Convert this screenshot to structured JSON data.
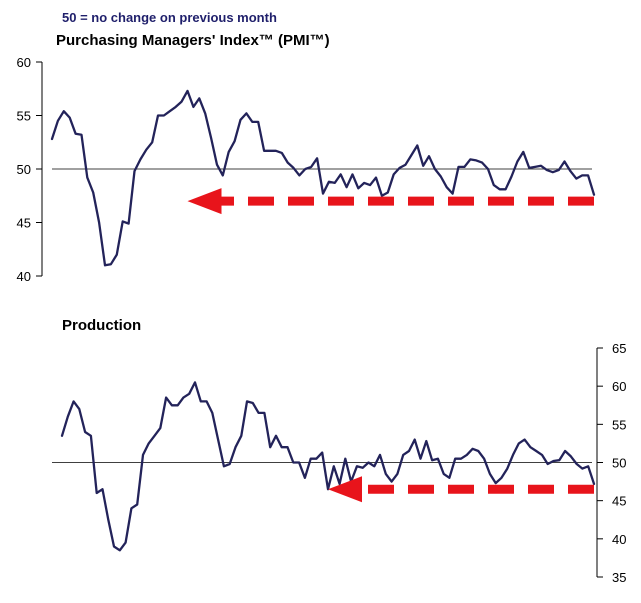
{
  "header": {
    "note": "50 =  no change on previous month"
  },
  "colors": {
    "line": "#23235a",
    "arrow": "#e8141b",
    "axis": "#000000"
  },
  "chart_data": [
    {
      "type": "line",
      "title": "Purchasing Managers' Index™ (PMI™)",
      "xlabel": "",
      "ylabel": "",
      "ylim": [
        40,
        60
      ],
      "yticks": [
        40,
        45,
        50,
        55,
        60
      ],
      "axis_side": "left",
      "reference_line": 50,
      "arrow": {
        "direction": "left",
        "style": "dashed",
        "from_index": 120,
        "to_index": 23
      },
      "series": [
        {
          "values": [
            52.8,
            54.5,
            55.4,
            54.8,
            53.3,
            53.2,
            49.2,
            47.8,
            45.0,
            41.0,
            41.1,
            42.0,
            45.1,
            44.9,
            49.8,
            50.9,
            51.8,
            52.5,
            55.0,
            55.0,
            55.4,
            55.8,
            56.3,
            57.3,
            55.8,
            56.6,
            55.2,
            52.9,
            50.4,
            49.4,
            51.6,
            52.6,
            54.6,
            55.2,
            54.4,
            54.4,
            51.7,
            51.7,
            51.7,
            51.5,
            50.6,
            50.1,
            49.4,
            50.0,
            50.2,
            51.0,
            47.7,
            48.8,
            48.7,
            49.5,
            48.3,
            49.5,
            48.2,
            48.7,
            48.5,
            49.2,
            47.5,
            47.8,
            49.5,
            50.1,
            50.4,
            51.3,
            52.2,
            50.3,
            51.2,
            50.0,
            49.3,
            48.3,
            47.7,
            50.2,
            50.2,
            50.9,
            50.8,
            50.6,
            50.0,
            48.5,
            48.1,
            48.1,
            49.3,
            50.7,
            51.6,
            50.1,
            50.2,
            50.3,
            49.9,
            49.7,
            49.9,
            50.7,
            49.8,
            49.1,
            49.4,
            49.4,
            47.6
          ]
        }
      ]
    },
    {
      "type": "line",
      "title": "Production",
      "xlabel": "",
      "ylabel": "",
      "ylim": [
        35,
        65
      ],
      "yticks": [
        35,
        40,
        45,
        50,
        55,
        60,
        65
      ],
      "axis_side": "right",
      "reference_line": 50,
      "arrow": {
        "direction": "left",
        "style": "dashed",
        "from_index": 120,
        "to_index": 46
      },
      "series": [
        {
          "values": [
            53.5,
            56.0,
            58.0,
            57.0,
            54.0,
            53.5,
            46.0,
            46.5,
            42.5,
            39.0,
            38.5,
            39.5,
            44.0,
            44.5,
            51.0,
            52.5,
            53.5,
            54.5,
            58.5,
            57.5,
            57.5,
            58.5,
            59.0,
            60.5,
            58.0,
            58.0,
            56.5,
            53.0,
            49.5,
            49.8,
            52.0,
            53.5,
            58.0,
            57.8,
            56.5,
            56.5,
            52.0,
            53.5,
            52.0,
            52.0,
            50.0,
            50.0,
            48.0,
            50.5,
            50.5,
            51.3,
            46.5,
            49.5,
            47.2,
            50.5,
            47.5,
            49.5,
            49.3,
            50.0,
            49.5,
            51.0,
            48.5,
            47.5,
            48.5,
            51.0,
            51.5,
            53.0,
            50.5,
            52.8,
            50.3,
            50.5,
            48.5,
            48.0,
            50.5,
            50.5,
            51.0,
            51.8,
            51.5,
            50.5,
            48.5,
            47.3,
            48.0,
            49.2,
            51.0,
            52.5,
            53.0,
            52.0,
            51.5,
            51.0,
            49.8,
            50.2,
            50.3,
            51.5,
            50.8,
            49.8,
            49.2,
            49.5,
            47.2
          ]
        }
      ]
    }
  ]
}
